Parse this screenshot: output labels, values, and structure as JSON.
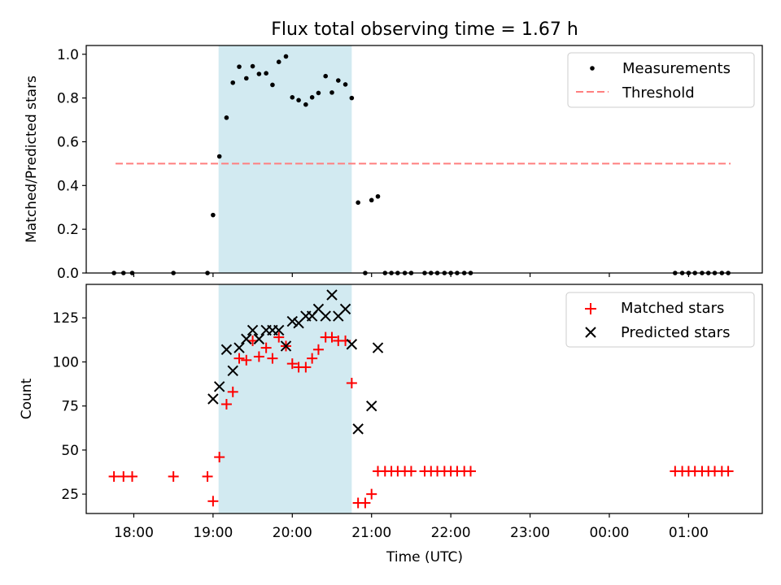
{
  "title": "Flux total observing time = 1.67 h",
  "xlabel": "Time (UTC)",
  "x_tick_labels": [
    "18:00",
    "19:00",
    "20:00",
    "21:00",
    "22:00",
    "23:00",
    "00:00",
    "01:00"
  ],
  "colors": {
    "shaded_region": "#add8e6",
    "measurements": "#000000",
    "threshold": "#ff7f7f",
    "matched": "#ff0000",
    "predicted": "#000000"
  },
  "chart_data": [
    {
      "type": "scatter",
      "ylabel": "Matched/Predicted stars",
      "ylim": [
        0,
        1.04
      ],
      "xlim": [
        -0.6,
        7.93
      ],
      "x_unit": "hours after 18:00 UTC",
      "yticks": [
        0,
        0.2,
        0.4,
        0.6,
        0.8,
        1.0
      ],
      "ytick_labels": [
        "0.0",
        "0.2",
        "0.4",
        "0.6",
        "0.8",
        "1.0"
      ],
      "shaded_region": [
        1.07,
        2.75
      ],
      "legend_position": "top-right",
      "legend": [
        "Measurements",
        "Threshold"
      ],
      "threshold": {
        "name": "Threshold",
        "y": 0.5,
        "x_range": [
          -0.23,
          7.53
        ]
      },
      "series": [
        {
          "name": "Measurements",
          "points": [
            [
              -0.25,
              0
            ],
            [
              -0.13,
              0
            ],
            [
              -0.02,
              0
            ],
            [
              0.5,
              0
            ],
            [
              0.93,
              0
            ],
            [
              1.0,
              0.265
            ],
            [
              1.08,
              0.533
            ],
            [
              1.17,
              0.71
            ],
            [
              1.25,
              0.87
            ],
            [
              1.33,
              0.943
            ],
            [
              1.42,
              0.89
            ],
            [
              1.5,
              0.945
            ],
            [
              1.58,
              0.91
            ],
            [
              1.67,
              0.913
            ],
            [
              1.75,
              0.86
            ],
            [
              1.83,
              0.965
            ],
            [
              1.92,
              0.99
            ],
            [
              2.0,
              0.803
            ],
            [
              2.08,
              0.79
            ],
            [
              2.17,
              0.77
            ],
            [
              2.25,
              0.803
            ],
            [
              2.33,
              0.823
            ],
            [
              2.42,
              0.9
            ],
            [
              2.5,
              0.825
            ],
            [
              2.58,
              0.88
            ],
            [
              2.67,
              0.862
            ],
            [
              2.75,
              0.8
            ],
            [
              2.83,
              0.322
            ],
            [
              2.92,
              0
            ],
            [
              3.0,
              0.333
            ],
            [
              3.08,
              0.35
            ],
            [
              3.17,
              0
            ],
            [
              3.25,
              0
            ],
            [
              3.33,
              0
            ],
            [
              3.42,
              0
            ],
            [
              3.5,
              0
            ],
            [
              3.67,
              0
            ],
            [
              3.75,
              0
            ],
            [
              3.83,
              0
            ],
            [
              3.92,
              0
            ],
            [
              4.0,
              0
            ],
            [
              4.08,
              0
            ],
            [
              4.17,
              0
            ],
            [
              4.25,
              0
            ],
            [
              6.83,
              0
            ],
            [
              6.92,
              0
            ],
            [
              7.0,
              0
            ],
            [
              7.08,
              0
            ],
            [
              7.17,
              0
            ],
            [
              7.25,
              0
            ],
            [
              7.33,
              0
            ],
            [
              7.42,
              0
            ],
            [
              7.5,
              0
            ]
          ]
        }
      ]
    },
    {
      "type": "scatter",
      "ylabel": "Count",
      "xlabel": "Time (UTC)",
      "ylim": [
        14,
        144
      ],
      "xlim": [
        -0.6,
        7.93
      ],
      "x_unit": "hours after 18:00 UTC",
      "yticks": [
        25,
        50,
        75,
        100,
        125
      ],
      "ytick_labels": [
        "25",
        "50",
        "75",
        "100",
        "125"
      ],
      "shaded_region": [
        1.07,
        2.75
      ],
      "legend_position": "top-right",
      "legend": [
        "Matched stars",
        "Predicted stars"
      ],
      "series": [
        {
          "name": "Matched stars",
          "marker": "+",
          "points": [
            [
              -0.25,
              35
            ],
            [
              -0.13,
              35
            ],
            [
              -0.02,
              35
            ],
            [
              0.5,
              35
            ],
            [
              0.93,
              35
            ],
            [
              1.0,
              21
            ],
            [
              1.08,
              46
            ],
            [
              1.17,
              76
            ],
            [
              1.25,
              83
            ],
            [
              1.33,
              102
            ],
            [
              1.42,
              101
            ],
            [
              1.5,
              112
            ],
            [
              1.58,
              103
            ],
            [
              1.67,
              108
            ],
            [
              1.75,
              102
            ],
            [
              1.83,
              114
            ],
            [
              1.92,
              109
            ],
            [
              2.0,
              99
            ],
            [
              2.08,
              97
            ],
            [
              2.17,
              97
            ],
            [
              2.25,
              102
            ],
            [
              2.33,
              107
            ],
            [
              2.42,
              114
            ],
            [
              2.5,
              114
            ],
            [
              2.58,
              112
            ],
            [
              2.67,
              112
            ],
            [
              2.75,
              88
            ],
            [
              2.83,
              20
            ],
            [
              2.92,
              20
            ],
            [
              3.0,
              25
            ],
            [
              3.08,
              38
            ],
            [
              3.17,
              38
            ],
            [
              3.25,
              38
            ],
            [
              3.33,
              38
            ],
            [
              3.42,
              38
            ],
            [
              3.5,
              38
            ],
            [
              3.67,
              38
            ],
            [
              3.75,
              38
            ],
            [
              3.83,
              38
            ],
            [
              3.92,
              38
            ],
            [
              4.0,
              38
            ],
            [
              4.08,
              38
            ],
            [
              4.17,
              38
            ],
            [
              4.25,
              38
            ],
            [
              6.83,
              38
            ],
            [
              6.92,
              38
            ],
            [
              7.0,
              38
            ],
            [
              7.08,
              38
            ],
            [
              7.17,
              38
            ],
            [
              7.25,
              38
            ],
            [
              7.33,
              38
            ],
            [
              7.42,
              38
            ],
            [
              7.5,
              38
            ]
          ]
        },
        {
          "name": "Predicted stars",
          "marker": "x",
          "points": [
            [
              1.0,
              79
            ],
            [
              1.08,
              86
            ],
            [
              1.17,
              107
            ],
            [
              1.25,
              95
            ],
            [
              1.33,
              108
            ],
            [
              1.42,
              113
            ],
            [
              1.5,
              118
            ],
            [
              1.58,
              113
            ],
            [
              1.67,
              118
            ],
            [
              1.75,
              118
            ],
            [
              1.83,
              118
            ],
            [
              1.92,
              109
            ],
            [
              2.0,
              123
            ],
            [
              2.08,
              122
            ],
            [
              2.17,
              126
            ],
            [
              2.25,
              126
            ],
            [
              2.33,
              130
            ],
            [
              2.42,
              126
            ],
            [
              2.5,
              138
            ],
            [
              2.58,
              126
            ],
            [
              2.67,
              130
            ],
            [
              2.75,
              110
            ],
            [
              2.83,
              62
            ],
            [
              3.0,
              75
            ],
            [
              3.08,
              108
            ]
          ]
        }
      ]
    }
  ]
}
